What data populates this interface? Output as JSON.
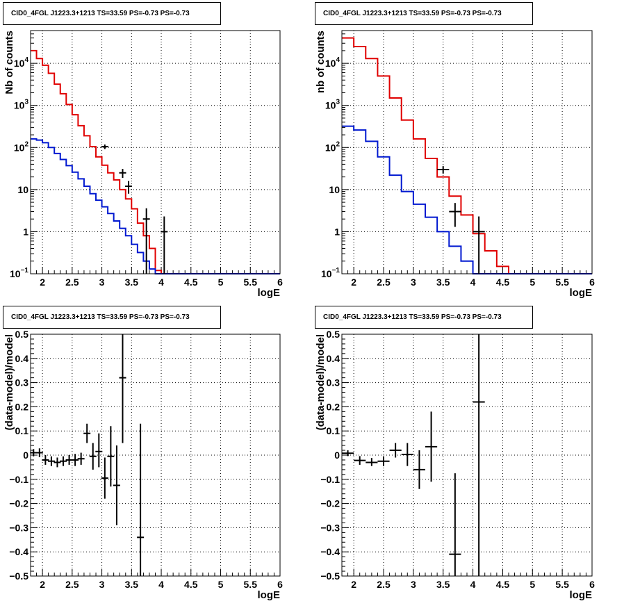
{
  "pad_title": "CID0_4FGL J1223.3+1213 TS=33.59 PS=-0.73 PS=-0.73",
  "chart_data": [
    {
      "type": "line",
      "title": "CID0_4FGL J1223.3+1213 TS=33.59 PS=-0.73 PS=-0.73",
      "xlabel": "logE",
      "ylabel": "Nb of counts",
      "xlim": [
        1.8,
        6.0
      ],
      "ylim": [
        0.1,
        60000
      ],
      "yscale": "log",
      "grid": true,
      "x_ticks": [
        "2",
        "2.5",
        "3",
        "3.5",
        "4",
        "4.5",
        "5",
        "5.5",
        "6"
      ],
      "y_ticks": [
        "10^-1",
        "1",
        "10",
        "10^2",
        "10^3",
        "10^4"
      ],
      "bin_edges": [
        1.8,
        1.9,
        2.0,
        2.1,
        2.2,
        2.3,
        2.4,
        2.5,
        2.6,
        2.7,
        2.8,
        2.9,
        3.0,
        3.1,
        3.2,
        3.3,
        3.4,
        3.5,
        3.6,
        3.7,
        3.8,
        3.9,
        4.0,
        4.1,
        4.2,
        4.3,
        4.4,
        4.5,
        4.6,
        4.7,
        4.8,
        4.9,
        5.0,
        5.1,
        5.2,
        5.3,
        5.4,
        5.5,
        5.6,
        5.7,
        5.8,
        5.9,
        6.0
      ],
      "series": [
        {
          "color": "#e00000",
          "style": "hist",
          "values": [
            20000,
            13000,
            9000,
            5800,
            3200,
            1900,
            1050,
            600,
            330,
            190,
            105,
            60,
            38,
            25,
            17,
            10,
            6,
            3.5,
            1.6,
            0.8,
            0.4,
            0.12,
            0.1,
            0.1,
            0.1,
            0.1,
            0.1,
            0.1,
            0.1,
            0.1,
            0.1,
            0.1,
            0.1,
            0.1,
            0.1,
            0.1,
            0.1,
            0.1,
            0.1,
            0.1,
            0.1,
            0.1
          ]
        },
        {
          "color": "#0018d0",
          "style": "hist",
          "values": [
            160,
            150,
            130,
            100,
            72,
            52,
            37,
            26,
            18,
            12,
            8,
            5.6,
            3.9,
            2.7,
            1.8,
            1.2,
            0.8,
            0.5,
            0.32,
            0.2,
            0.13,
            0.1,
            0.1,
            0.1,
            0.1,
            0.1,
            0.1,
            0.1,
            0.1,
            0.1,
            0.1,
            0.1,
            0.1,
            0.1,
            0.1,
            0.1,
            0.1,
            0.1,
            0.1,
            0.1,
            0.1,
            0.1
          ]
        },
        {
          "color": "#000000",
          "style": "errorbar",
          "points": [
            {
              "x": 3.05,
              "y": 105,
              "lo": 92,
              "hi": 118
            },
            {
              "x": 3.35,
              "y": 25,
              "lo": 19,
              "hi": 31
            },
            {
              "x": 3.45,
              "y": 12,
              "lo": 8,
              "hi": 16
            },
            {
              "x": 3.75,
              "y": 2,
              "lo": 0.1,
              "hi": 3.6
            },
            {
              "x": 4.05,
              "y": 1,
              "lo": 0.1,
              "hi": 2.3
            }
          ]
        }
      ]
    },
    {
      "type": "line",
      "title": "CID0_4FGL J1223.3+1213 TS=33.59 PS=-0.73 PS=-0.73",
      "xlabel": "logE",
      "ylabel": "nb of counts",
      "xlim": [
        1.8,
        6.0
      ],
      "ylim": [
        0.1,
        60000
      ],
      "yscale": "log",
      "grid": true,
      "x_ticks": [
        "2",
        "2.5",
        "3",
        "3.5",
        "4",
        "4.5",
        "5",
        "5.5",
        "6"
      ],
      "y_ticks": [
        "10^-1",
        "1",
        "10",
        "10^2",
        "10^3",
        "10^4"
      ],
      "bin_edges": [
        1.8,
        2.0,
        2.2,
        2.4,
        2.6,
        2.8,
        3.0,
        3.2,
        3.4,
        3.6,
        3.8,
        4.0,
        4.2,
        4.4,
        4.6,
        4.8,
        5.0,
        5.2,
        5.4,
        5.6,
        5.8,
        6.0
      ],
      "series": [
        {
          "color": "#e00000",
          "style": "hist",
          "values": [
            40000,
            25000,
            13000,
            5000,
            1500,
            450,
            160,
            55,
            20,
            7,
            2.5,
            0.9,
            0.35,
            0.15,
            0.1,
            0.1,
            0.1,
            0.1,
            0.1,
            0.1,
            0.1
          ]
        },
        {
          "color": "#0018d0",
          "style": "hist",
          "values": [
            320,
            260,
            140,
            60,
            22,
            9,
            4.5,
            2.2,
            1,
            0.45,
            0.2,
            0.1,
            0.1,
            0.1,
            0.1,
            0.1,
            0.1,
            0.1,
            0.1,
            0.1,
            0.1
          ]
        },
        {
          "color": "#000000",
          "style": "errorbar",
          "points": [
            {
              "x": 3.5,
              "y": 30,
              "lo": 24,
              "hi": 36,
              "xerr": 0.1
            },
            {
              "x": 3.7,
              "y": 3,
              "lo": 1.3,
              "hi": 4.8,
              "xerr": 0.1
            },
            {
              "x": 4.1,
              "y": 1,
              "lo": 0.1,
              "hi": 2.3,
              "xerr": 0.1
            }
          ]
        }
      ]
    },
    {
      "type": "scatter",
      "title": "CID0_4FGL J1223.3+1213 TS=33.59 PS=-0.73 PS=-0.73",
      "xlabel": "logE",
      "ylabel": "(data-model)/model",
      "xlim": [
        1.8,
        6.0
      ],
      "ylim": [
        -0.5,
        0.5
      ],
      "grid": true,
      "x_ticks": [
        "2",
        "2.5",
        "3",
        "3.5",
        "4",
        "4.5",
        "5",
        "5.5",
        "6"
      ],
      "y_ticks": [
        "−0.5",
        "−0.4",
        "−0.3",
        "−0.2",
        "−0.1",
        "0",
        "0.1",
        "0.2",
        "0.3",
        "0.4",
        "0.5"
      ],
      "series": [
        {
          "color": "#000000",
          "style": "errorbar",
          "points": [
            {
              "x": 1.85,
              "y": 0.01,
              "lo": -0.005,
              "hi": 0.025
            },
            {
              "x": 1.95,
              "y": 0.01,
              "lo": -0.008,
              "hi": 0.028
            },
            {
              "x": 2.05,
              "y": -0.02,
              "lo": -0.04,
              "hi": 0.0
            },
            {
              "x": 2.15,
              "y": -0.025,
              "lo": -0.045,
              "hi": -0.005
            },
            {
              "x": 2.25,
              "y": -0.03,
              "lo": -0.05,
              "hi": -0.01
            },
            {
              "x": 2.35,
              "y": -0.025,
              "lo": -0.045,
              "hi": -0.005
            },
            {
              "x": 2.45,
              "y": -0.02,
              "lo": -0.04,
              "hi": 0.0
            },
            {
              "x": 2.55,
              "y": -0.02,
              "lo": -0.045,
              "hi": 0.005
            },
            {
              "x": 2.65,
              "y": -0.015,
              "lo": -0.04,
              "hi": 0.01
            },
            {
              "x": 2.75,
              "y": 0.09,
              "lo": 0.05,
              "hi": 0.13
            },
            {
              "x": 2.85,
              "y": -0.005,
              "lo": -0.06,
              "hi": 0.05
            },
            {
              "x": 2.95,
              "y": 0.015,
              "lo": -0.05,
              "hi": 0.09
            },
            {
              "x": 3.05,
              "y": -0.095,
              "lo": -0.18,
              "hi": -0.01
            },
            {
              "x": 3.15,
              "y": -0.005,
              "lo": -0.13,
              "hi": 0.12
            },
            {
              "x": 3.25,
              "y": -0.125,
              "lo": -0.29,
              "hi": 0.04
            },
            {
              "x": 3.35,
              "y": 0.32,
              "lo": 0.05,
              "hi": 0.5
            },
            {
              "x": 3.65,
              "y": -0.34,
              "lo": -0.5,
              "hi": 0.13
            }
          ]
        }
      ]
    },
    {
      "type": "scatter",
      "title": "CID0_4FGL J1223.3+1213 TS=33.59 PS=-0.73 PS=-0.73",
      "xlabel": "logE",
      "ylabel": "(data-model)/model",
      "xlim": [
        1.8,
        6.0
      ],
      "ylim": [
        -0.5,
        0.5
      ],
      "grid": true,
      "x_ticks": [
        "2",
        "2.5",
        "3",
        "3.5",
        "4",
        "4.5",
        "5",
        "5.5",
        "6"
      ],
      "y_ticks": [
        "−0.5",
        "−0.4",
        "−0.3",
        "−0.2",
        "−0.1",
        "0",
        "0.1",
        "0.2",
        "0.3",
        "0.4",
        "0.5"
      ],
      "series": [
        {
          "color": "#000000",
          "style": "errorbar",
          "points": [
            {
              "x": 1.9,
              "y": 0.008,
              "lo": -0.004,
              "hi": 0.02,
              "xerr": 0.1
            },
            {
              "x": 2.1,
              "y": -0.022,
              "lo": -0.04,
              "hi": -0.004,
              "xerr": 0.1
            },
            {
              "x": 2.3,
              "y": -0.03,
              "lo": -0.045,
              "hi": -0.012,
              "xerr": 0.1
            },
            {
              "x": 2.5,
              "y": -0.025,
              "lo": -0.045,
              "hi": -0.005,
              "xerr": 0.1
            },
            {
              "x": 2.7,
              "y": 0.02,
              "lo": -0.01,
              "hi": 0.05,
              "xerr": 0.1
            },
            {
              "x": 2.9,
              "y": 0.003,
              "lo": -0.045,
              "hi": 0.05,
              "xerr": 0.1
            },
            {
              "x": 3.1,
              "y": -0.06,
              "lo": -0.14,
              "hi": 0.02,
              "xerr": 0.1
            },
            {
              "x": 3.3,
              "y": 0.035,
              "lo": -0.11,
              "hi": 0.18,
              "xerr": 0.1
            },
            {
              "x": 3.7,
              "y": -0.41,
              "lo": -0.5,
              "hi": -0.075,
              "xerr": 0.1
            },
            {
              "x": 4.1,
              "y": 0.22,
              "lo": -0.5,
              "hi": 0.5,
              "xerr": 0.1
            }
          ]
        }
      ]
    }
  ]
}
